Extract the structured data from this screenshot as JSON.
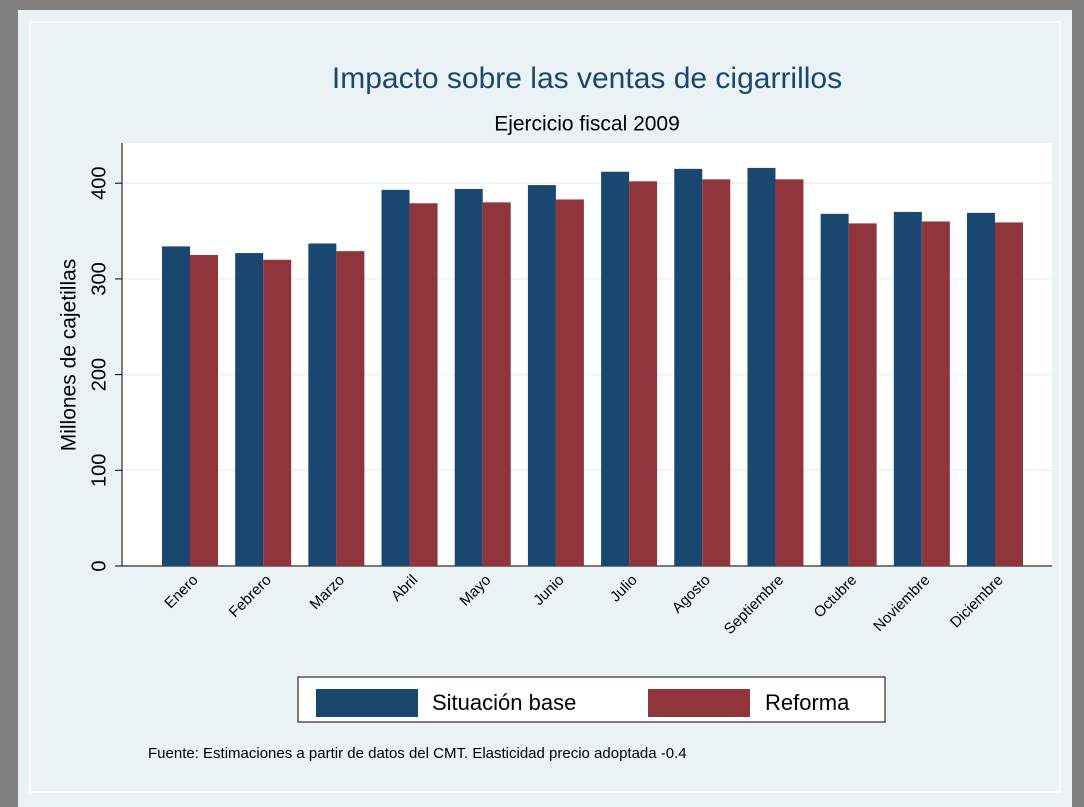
{
  "chart_data": {
    "type": "bar",
    "title": "Impacto sobre las ventas de cigarrillos",
    "subtitle": "Ejercicio fiscal 2009",
    "y_label": "Millones de cajetillas",
    "note": "Fuente: Estimaciones a partir de datos del CMT. Elasticidad precio adoptada -0.4",
    "categories": [
      "Enero",
      "Febrero",
      "Marzo",
      "Abril",
      "Mayo",
      "Junio",
      "Julio",
      "Agosto",
      "Septiembre",
      "Octubre",
      "Noviembre",
      "Diciembre"
    ],
    "series": [
      {
        "name": "Situación base",
        "color": "#1a476f",
        "values": [
          334,
          327,
          337,
          393,
          394,
          398,
          412,
          415,
          416,
          368,
          370,
          369
        ]
      },
      {
        "name": "Reforma",
        "color": "#90353b",
        "values": [
          325,
          320,
          329,
          379,
          380,
          383,
          402,
          404,
          404,
          358,
          360,
          359
        ]
      }
    ],
    "ylim": [
      0,
      442
    ],
    "yticks": [
      0,
      100,
      200,
      300,
      400
    ],
    "grid": true,
    "legend": "bottom"
  }
}
